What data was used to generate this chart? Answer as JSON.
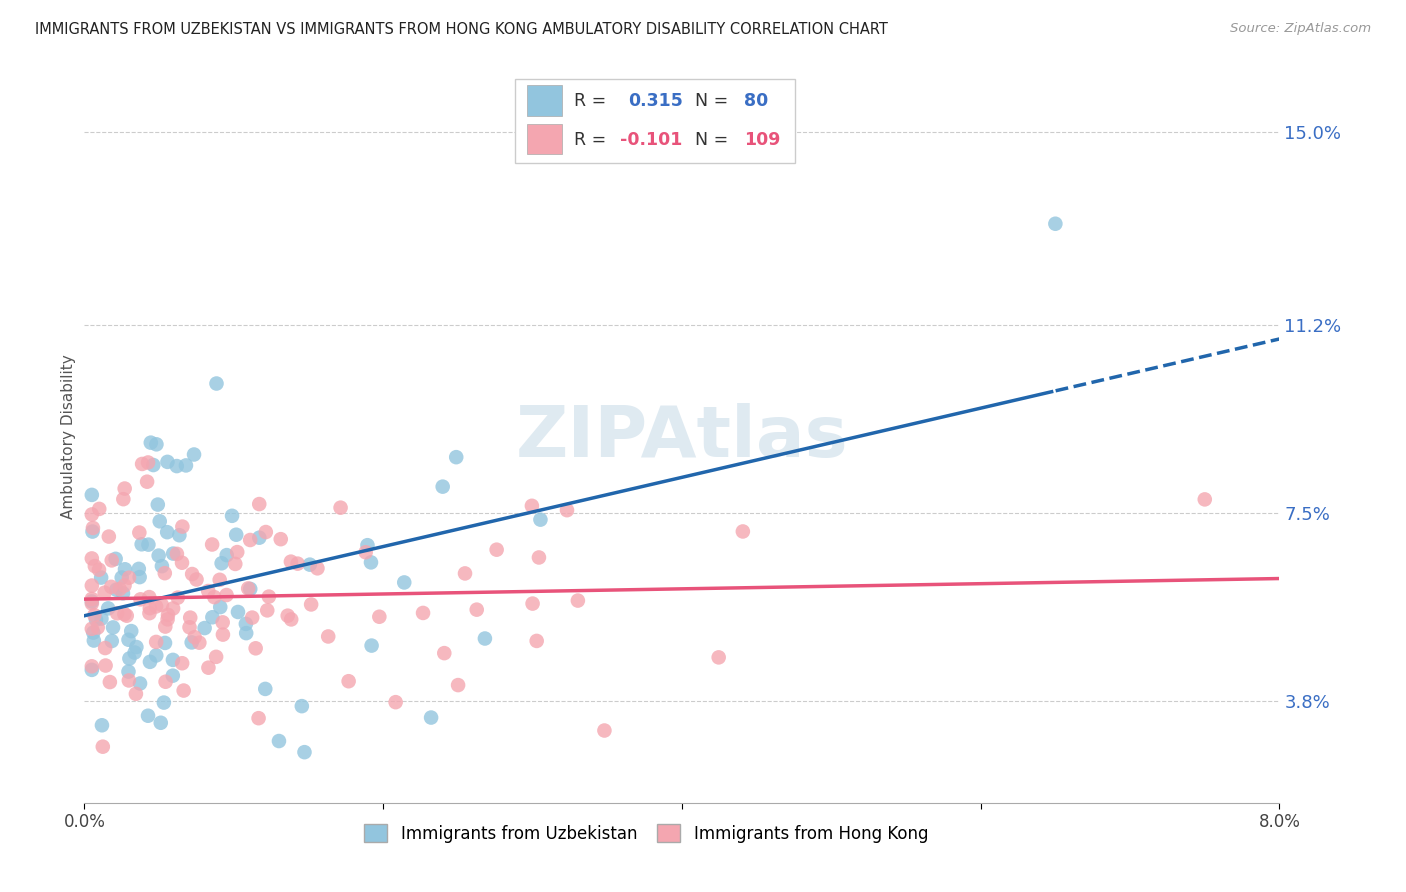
{
  "title": "IMMIGRANTS FROM UZBEKISTAN VS IMMIGRANTS FROM HONG KONG AMBULATORY DISABILITY CORRELATION CHART",
  "source": "Source: ZipAtlas.com",
  "ylabel_label": "Ambulatory Disability",
  "ylabel_ticks": [
    3.8,
    7.5,
    11.2,
    15.0
  ],
  "xlim": [
    0.0,
    8.0
  ],
  "ylim": [
    1.8,
    16.2
  ],
  "legend1_R": "0.315",
  "legend1_N": "80",
  "legend2_R": "-0.101",
  "legend2_N": "109",
  "blue_color": "#92c5de",
  "pink_color": "#f4a6b0",
  "blue_line_color": "#2166ac",
  "pink_line_color": "#e8537a",
  "watermark": "ZIPAtlas",
  "watermark_color": "#dce8f0"
}
